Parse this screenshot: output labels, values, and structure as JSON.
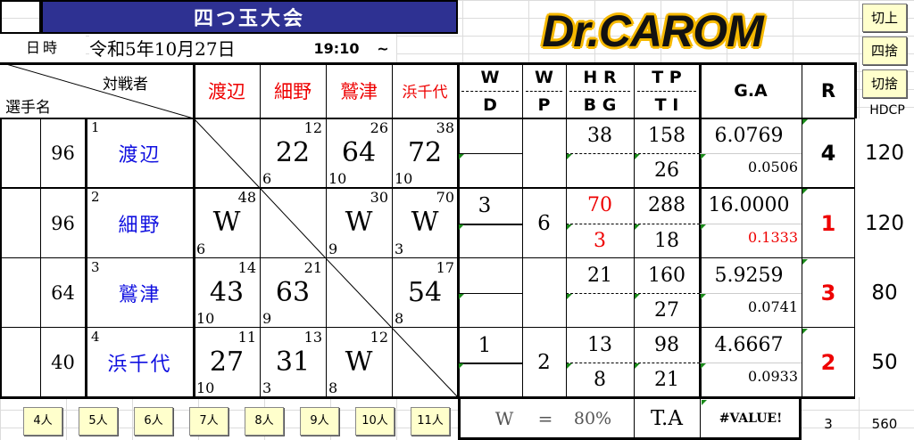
{
  "title": "四つ玉大会",
  "logo": "Dr.CAROM",
  "date_label": "日時",
  "date": "令和5年10月27日",
  "time": "19:10",
  "tilde": "~",
  "side_buttons": [
    "切上",
    "四捨",
    "切捨"
  ],
  "hdcp_label": "HDCP",
  "header": {
    "opponent": "対戦者",
    "player": "選手名",
    "opponents": [
      "渡辺",
      "細野",
      "鷲津",
      "浜千代"
    ],
    "wd": [
      "W",
      "D"
    ],
    "wp": [
      "W",
      "P"
    ],
    "hrbg": [
      "H R",
      "B G"
    ],
    "tpti": [
      "T P",
      "T I"
    ],
    "ga": "G.A",
    "r": "R"
  },
  "players": [
    {
      "no": "1",
      "name": "渡辺",
      "hc": "96",
      "results": [
        null,
        {
          "score": "22",
          "top": "12",
          "bottom": "6"
        },
        {
          "score": "64",
          "top": "26",
          "bottom": "10"
        },
        {
          "score": "72",
          "top": "38",
          "bottom": "10"
        }
      ],
      "w": "",
      "d": "",
      "wp": "",
      "hr": "38",
      "bg": "",
      "tp": "158",
      "ti": "26",
      "ga": "6.0769",
      "ga2": "0.0506",
      "r": "4",
      "hdcp": "120",
      "highlight": false
    },
    {
      "no": "2",
      "name": "細野",
      "hc": "96",
      "results": [
        {
          "score": "W",
          "top": "48",
          "bottom": "6"
        },
        null,
        {
          "score": "W",
          "top": "30",
          "bottom": "9"
        },
        {
          "score": "W",
          "top": "70",
          "bottom": "3"
        }
      ],
      "w": "3",
      "d": "",
      "wp": "6",
      "hr": "70",
      "bg": "3",
      "tp": "288",
      "ti": "18",
      "ga": "16.0000",
      "ga2": "0.1333",
      "r": "1",
      "hdcp": "120",
      "highlight": true
    },
    {
      "no": "3",
      "name": "鷲津",
      "hc": "64",
      "results": [
        {
          "score": "43",
          "top": "14",
          "bottom": "10"
        },
        {
          "score": "63",
          "top": "21",
          "bottom": "9"
        },
        null,
        {
          "score": "54",
          "top": "17",
          "bottom": "8"
        }
      ],
      "w": "",
      "d": "",
      "wp": "",
      "hr": "21",
      "bg": "",
      "tp": "160",
      "ti": "27",
      "ga": "5.9259",
      "ga2": "0.0741",
      "r": "3",
      "hdcp": "80",
      "highlight": false
    },
    {
      "no": "4",
      "name": "浜千代",
      "hc": "40",
      "results": [
        {
          "score": "27",
          "top": "11",
          "bottom": "10"
        },
        {
          "score": "31",
          "top": "13",
          "bottom": "3"
        },
        {
          "score": "W",
          "top": "12",
          "bottom": "8"
        },
        null
      ],
      "w": "1",
      "d": "",
      "wp": "2",
      "hr": "13",
      "bg": "8",
      "tp": "98",
      "ti": "21",
      "ga": "4.6667",
      "ga2": "0.0933",
      "r": "2",
      "hdcp": "50",
      "highlight": false
    }
  ],
  "count_buttons": [
    "4人",
    "5人",
    "6人",
    "7人",
    "8人",
    "9人",
    "10人",
    "11人"
  ],
  "footer": {
    "w": "W",
    "eq": "=",
    "pct": "80%",
    "ta": "T.A",
    "ta_value": "#VALUE!",
    "count": "3",
    "total": "560"
  },
  "colors": {
    "title_bg": "#2e3192",
    "button_bg": "#ffffcc",
    "red": "#e00000",
    "blue": "#1010e0",
    "logo_outline": "#f5b800"
  }
}
